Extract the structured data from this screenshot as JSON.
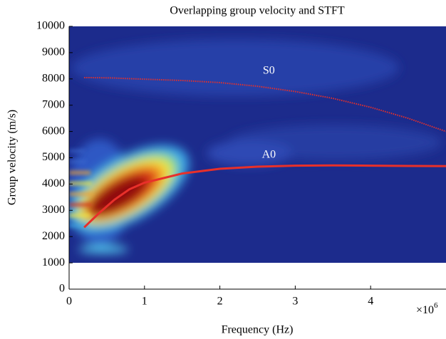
{
  "chart_data": {
    "type": "line",
    "title": "Overlapping group velocity and STFT",
    "x_label": "Frequency (Hz)",
    "y_label": "Group velocity (m/s)",
    "x_scale_label": {
      "base": "×10",
      "exponent": "6"
    },
    "x": [
      200000,
      400000,
      600000,
      800000,
      1000000,
      1500000,
      2000000,
      2500000,
      3000000,
      3500000,
      4000000,
      4500000,
      5000000
    ],
    "series": [
      {
        "name": "S0",
        "color": "#e8302a",
        "style": "dotted",
        "values": [
          8050,
          8045,
          8035,
          8010,
          7990,
          7940,
          7860,
          7720,
          7520,
          7260,
          6920,
          6500,
          6000
        ]
      },
      {
        "name": "A0",
        "color": "#e8302a",
        "style": "solid",
        "values": [
          2350,
          2900,
          3400,
          3800,
          4050,
          4400,
          4580,
          4660,
          4700,
          4710,
          4700,
          4690,
          4680
        ]
      }
    ],
    "annotations": [
      {
        "text": "S0",
        "x": 2650000,
        "y": 8300
      },
      {
        "text": "A0",
        "x": 2650000,
        "y": 5100
      }
    ],
    "xlim": [
      0,
      5000000
    ],
    "ylim": [
      0,
      10000
    ],
    "xticks": [
      {
        "value": 0,
        "label": "0"
      },
      {
        "value": 1000000,
        "label": "1"
      },
      {
        "value": 2000000,
        "label": "2"
      },
      {
        "value": 3000000,
        "label": "3"
      },
      {
        "value": 4000000,
        "label": "4"
      }
    ],
    "yticks": [
      0,
      1000,
      2000,
      3000,
      4000,
      5000,
      6000,
      7000,
      8000,
      9000,
      10000
    ]
  }
}
